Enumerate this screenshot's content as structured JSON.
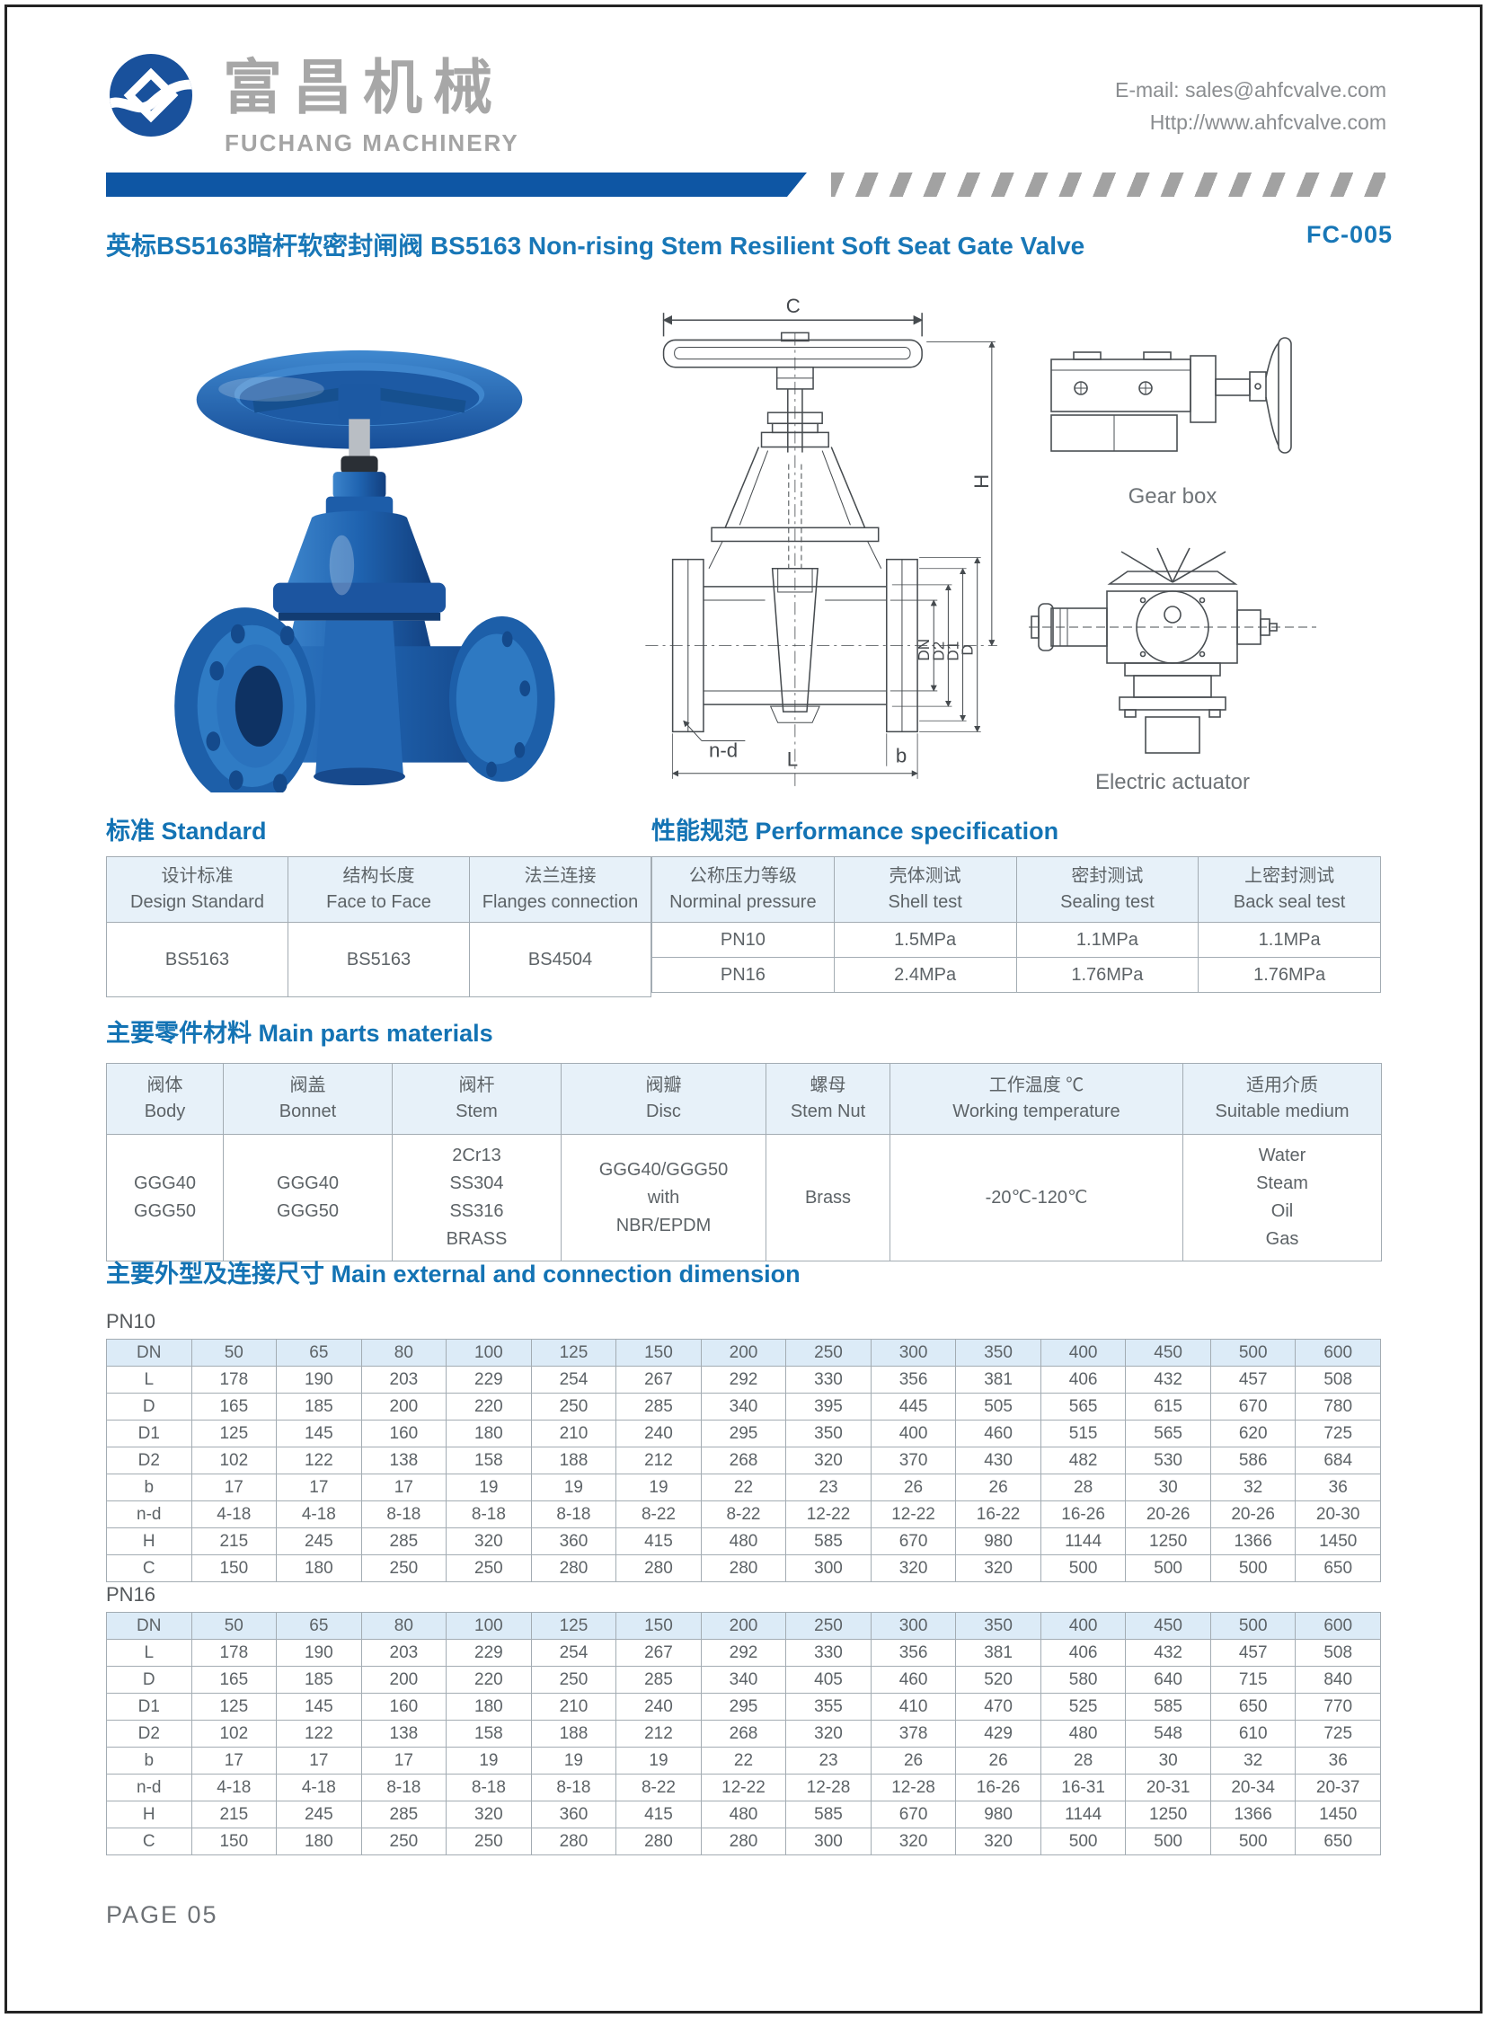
{
  "header": {
    "logo_cn": "富昌机械",
    "logo_en": "FUCHANG MACHINERY",
    "email": "E-mail: sales@ahfcvalve.com",
    "website": "Http://www.ahfcvalve.com"
  },
  "title": {
    "text": "英标BS5163暗杆软密封闸阀 BS5163 Non-rising Stem Resilient Soft Seat Gate Valve",
    "code": "FC-005"
  },
  "figures": {
    "drawing": {
      "c": "C",
      "h": "H",
      "dn": "DN",
      "d2": "D2",
      "d1": "D1",
      "d": "D",
      "n_d": "n-d",
      "l": "L",
      "b": "b"
    },
    "gearbox_caption": "Gear box",
    "actuator_caption": "Electric actuator"
  },
  "standard": {
    "heading": "标准 Standard",
    "columns": [
      [
        "设计标准",
        "Design Standard"
      ],
      [
        "结构长度",
        "Face to Face"
      ],
      [
        "法兰连接",
        "Flanges connection"
      ]
    ],
    "rows": [
      [
        "BS5163",
        "BS5163",
        "BS4504"
      ]
    ]
  },
  "performance": {
    "heading": "性能规范 Performance specification",
    "columns": [
      [
        "公称压力等级",
        "Norminal pressure"
      ],
      [
        "壳体测试",
        "Shell test"
      ],
      [
        "密封测试",
        "Sealing test"
      ],
      [
        "上密封测试",
        "Back seal test"
      ]
    ],
    "rows": [
      [
        "PN10",
        "1.5MPa",
        "1.1MPa",
        "1.1MPa"
      ],
      [
        "PN16",
        "2.4MPa",
        "1.76MPa",
        "1.76MPa"
      ]
    ]
  },
  "materials": {
    "heading": "主要零件材料 Main parts materials",
    "columns": [
      [
        "阀体",
        "Body"
      ],
      [
        "阀盖",
        "Bonnet"
      ],
      [
        "阀杆",
        "Stem"
      ],
      [
        "阀瓣",
        "Disc"
      ],
      [
        "螺母",
        "Stem Nut"
      ],
      [
        "工作温度 ℃",
        "Working temperature"
      ],
      [
        "适用介质",
        "Suitable medium"
      ]
    ],
    "rows": [
      [
        [
          "GGG40",
          "GGG50"
        ],
        [
          "GGG40",
          "GGG50"
        ],
        [
          "2Cr13",
          "SS304",
          "SS316",
          "BRASS"
        ],
        [
          "GGG40/GGG50",
          "with",
          "NBR/EPDM"
        ],
        [
          "Brass"
        ],
        [
          "-20℃-120℃"
        ],
        [
          "Water",
          "Steam",
          "Oil",
          "Gas"
        ]
      ]
    ]
  },
  "dimensions": {
    "heading": "主要外型及连接尺寸 Main external and connection dimension",
    "tables": [
      {
        "label": "PN10",
        "rows": [
          [
            "DN",
            "50",
            "65",
            "80",
            "100",
            "125",
            "150",
            "200",
            "250",
            "300",
            "350",
            "400",
            "450",
            "500",
            "600"
          ],
          [
            "L",
            "178",
            "190",
            "203",
            "229",
            "254",
            "267",
            "292",
            "330",
            "356",
            "381",
            "406",
            "432",
            "457",
            "508"
          ],
          [
            "D",
            "165",
            "185",
            "200",
            "220",
            "250",
            "285",
            "340",
            "395",
            "445",
            "505",
            "565",
            "615",
            "670",
            "780"
          ],
          [
            "D1",
            "125",
            "145",
            "160",
            "180",
            "210",
            "240",
            "295",
            "350",
            "400",
            "460",
            "515",
            "565",
            "620",
            "725"
          ],
          [
            "D2",
            "102",
            "122",
            "138",
            "158",
            "188",
            "212",
            "268",
            "320",
            "370",
            "430",
            "482",
            "530",
            "586",
            "684"
          ],
          [
            "b",
            "17",
            "17",
            "17",
            "19",
            "19",
            "19",
            "22",
            "23",
            "26",
            "26",
            "28",
            "30",
            "32",
            "36"
          ],
          [
            "n-d",
            "4-18",
            "4-18",
            "8-18",
            "8-18",
            "8-18",
            "8-22",
            "8-22",
            "12-22",
            "12-22",
            "16-22",
            "16-26",
            "20-26",
            "20-26",
            "20-30"
          ],
          [
            "H",
            "215",
            "245",
            "285",
            "320",
            "360",
            "415",
            "480",
            "585",
            "670",
            "980",
            "1144",
            "1250",
            "1366",
            "1450"
          ],
          [
            "C",
            "150",
            "180",
            "250",
            "250",
            "280",
            "280",
            "280",
            "300",
            "320",
            "320",
            "500",
            "500",
            "500",
            "650"
          ]
        ]
      },
      {
        "label": "PN16",
        "rows": [
          [
            "DN",
            "50",
            "65",
            "80",
            "100",
            "125",
            "150",
            "200",
            "250",
            "300",
            "350",
            "400",
            "450",
            "500",
            "600"
          ],
          [
            "L",
            "178",
            "190",
            "203",
            "229",
            "254",
            "267",
            "292",
            "330",
            "356",
            "381",
            "406",
            "432",
            "457",
            "508"
          ],
          [
            "D",
            "165",
            "185",
            "200",
            "220",
            "250",
            "285",
            "340",
            "405",
            "460",
            "520",
            "580",
            "640",
            "715",
            "840"
          ],
          [
            "D1",
            "125",
            "145",
            "160",
            "180",
            "210",
            "240",
            "295",
            "355",
            "410",
            "470",
            "525",
            "585",
            "650",
            "770"
          ],
          [
            "D2",
            "102",
            "122",
            "138",
            "158",
            "188",
            "212",
            "268",
            "320",
            "378",
            "429",
            "480",
            "548",
            "610",
            "725"
          ],
          [
            "b",
            "17",
            "17",
            "17",
            "19",
            "19",
            "19",
            "22",
            "23",
            "26",
            "26",
            "28",
            "30",
            "32",
            "36"
          ],
          [
            "n-d",
            "4-18",
            "4-18",
            "8-18",
            "8-18",
            "8-18",
            "8-22",
            "12-22",
            "12-28",
            "12-28",
            "16-26",
            "16-31",
            "20-31",
            "20-34",
            "20-37"
          ],
          [
            "H",
            "215",
            "245",
            "285",
            "320",
            "360",
            "415",
            "480",
            "585",
            "670",
            "980",
            "1144",
            "1250",
            "1366",
            "1450"
          ],
          [
            "C",
            "150",
            "180",
            "250",
            "250",
            "280",
            "280",
            "280",
            "300",
            "320",
            "320",
            "500",
            "500",
            "500",
            "650"
          ]
        ]
      }
    ]
  },
  "footer": {
    "page_label": "PAGE 05"
  }
}
